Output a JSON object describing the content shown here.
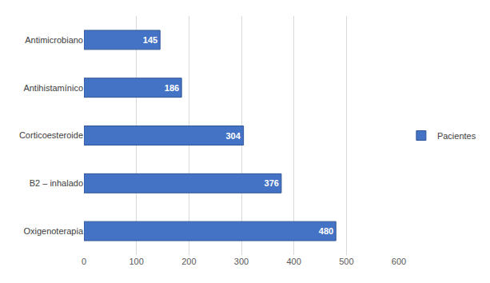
{
  "chart_data": {
    "type": "bar",
    "orientation": "horizontal",
    "categories": [
      "Antimicrobiano",
      "Antihistamínico",
      "Corticoesteroide",
      "B2 – inhalado",
      "Oxigenoterapia"
    ],
    "series": [
      {
        "name": "Pacientes",
        "color": "#4472c4",
        "values": [
          145,
          186,
          304,
          376,
          480
        ]
      }
    ],
    "xlim": [
      0,
      600
    ],
    "xticks": [
      0,
      100,
      200,
      300,
      400,
      500,
      600
    ],
    "grid": true,
    "legend": "right",
    "data_labels": true
  }
}
